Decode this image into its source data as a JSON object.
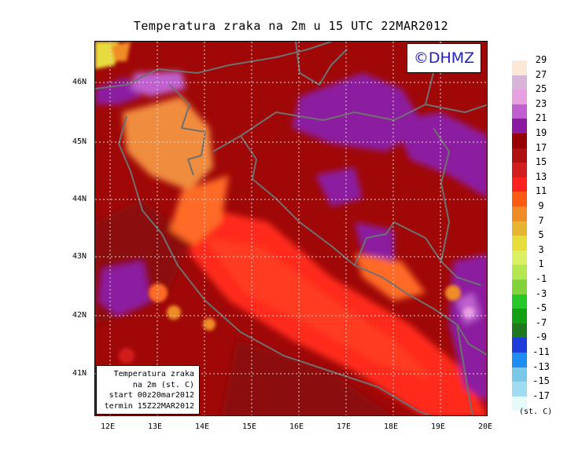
{
  "title": "Temperatura zraka na 2m u 15 UTC 22MAR2012",
  "logo": "©DHMZ",
  "info_box": {
    "line1": "Temperatura zraka",
    "line2": "na 2m (st. C)",
    "line3": "start 00z20mar2012",
    "line4": "termin 15Z22MAR2012"
  },
  "lat_labels": [
    "46N",
    "45N",
    "44N",
    "43N",
    "42N",
    "41N"
  ],
  "lon_labels": [
    "12E",
    "13E",
    "14E",
    "15E",
    "16E",
    "17E",
    "18E",
    "19E",
    "20E"
  ],
  "colorbar": {
    "unit": "(st. C)",
    "labels": [
      "29",
      "27",
      "25",
      "23",
      "21",
      "19",
      "17",
      "15",
      "13",
      "11",
      "9",
      "7",
      "5",
      "3",
      "1",
      "-1",
      "-3",
      "-5",
      "-7",
      "-9",
      "-11",
      "-13",
      "-15",
      "-17"
    ],
    "colors": [
      "#fde8d8",
      "#d8b4d8",
      "#e6a0e0",
      "#c060d0",
      "#8c1aa0",
      "#960000",
      "#b01010",
      "#d21e1e",
      "#ff2020",
      "#ff5a14",
      "#f08c28",
      "#e6b432",
      "#e6dc3c",
      "#dcf064",
      "#b4e650",
      "#82d23c",
      "#28c828",
      "#14a014",
      "#1e781e",
      "#1e3cdc",
      "#1e8cf0",
      "#78c8e6",
      "#a0dcf0",
      "#e6fafa"
    ]
  },
  "map": {
    "region": "Adriatic / Croatia",
    "lat_range": [
      40.3,
      46.8
    ],
    "lon_range": [
      11.8,
      20.0
    ],
    "variable": "2m air temperature"
  }
}
